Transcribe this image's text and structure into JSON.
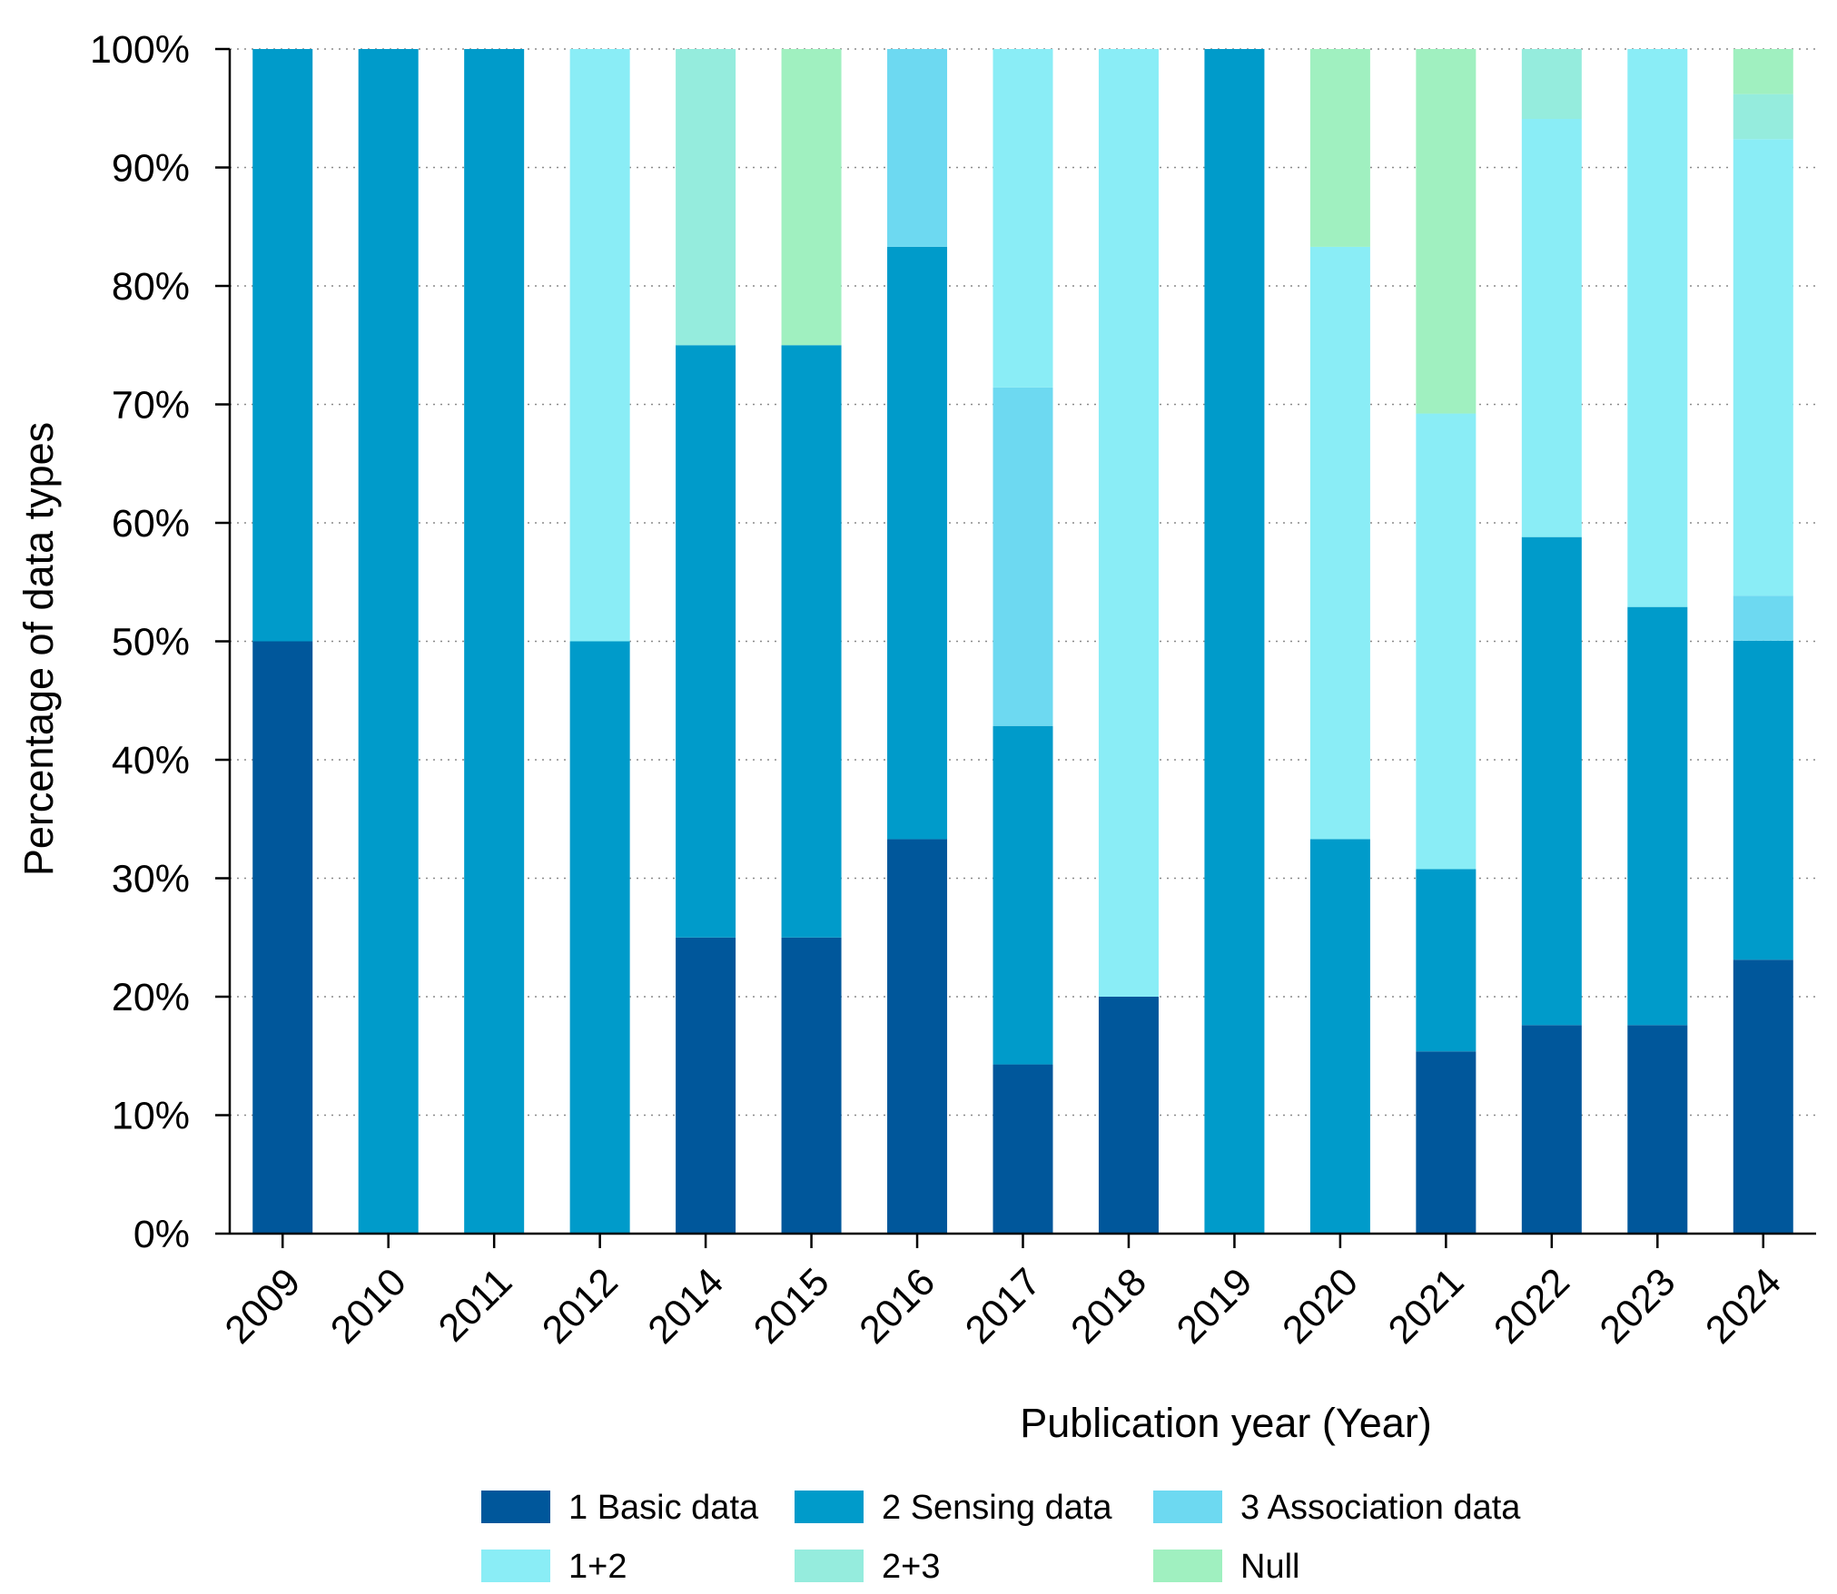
{
  "chart_data": {
    "type": "bar",
    "stacked": true,
    "normalized": true,
    "title": "",
    "xlabel": "Publication year (Year)",
    "ylabel": "Percentage of data types",
    "ylim": [
      0,
      100
    ],
    "yticks": [
      "0%",
      "10%",
      "20%",
      "30%",
      "40%",
      "50%",
      "60%",
      "70%",
      "80%",
      "90%",
      "100%"
    ],
    "grid": "horizontal-dotted",
    "legend_position": "bottom",
    "categories": [
      "2009",
      "2010",
      "2011",
      "2012",
      "2014",
      "2015",
      "2016",
      "2017",
      "2018",
      "2019",
      "2020",
      "2021",
      "2022",
      "2023",
      "2024"
    ],
    "series": [
      {
        "name": "1 Basic data",
        "color": "#00579b",
        "values": [
          50,
          0,
          0,
          0,
          25,
          25,
          33.3,
          14.3,
          20,
          0,
          0,
          15.4,
          17.6,
          17.6,
          23.1
        ]
      },
      {
        "name": "2 Sensing data",
        "color": "#009bca",
        "values": [
          50,
          100,
          100,
          50,
          50,
          50,
          50,
          28.6,
          0,
          100,
          33.3,
          15.4,
          41.2,
          35.3,
          26.9
        ]
      },
      {
        "name": "3 Association data",
        "color": "#6dd9f1",
        "values": [
          0,
          0,
          0,
          0,
          0,
          0,
          16.7,
          28.6,
          0,
          0,
          0,
          0,
          0,
          0,
          3.8
        ]
      },
      {
        "name": "1+2",
        "color": "#8aedf6",
        "values": [
          0,
          0,
          0,
          50,
          0,
          0,
          0,
          28.6,
          80,
          0,
          50,
          38.5,
          35.3,
          47.1,
          38.5
        ]
      },
      {
        "name": "2+3",
        "color": "#95ecdd",
        "values": [
          0,
          0,
          0,
          0,
          25,
          0,
          0,
          0,
          0,
          0,
          0,
          0,
          5.9,
          0,
          3.8
        ]
      },
      {
        "name": "Null",
        "color": "#a0f0c0",
        "values": [
          0,
          0,
          0,
          0,
          0,
          25,
          0,
          0,
          0,
          0,
          16.7,
          30.8,
          0,
          0,
          3.8
        ]
      }
    ]
  }
}
